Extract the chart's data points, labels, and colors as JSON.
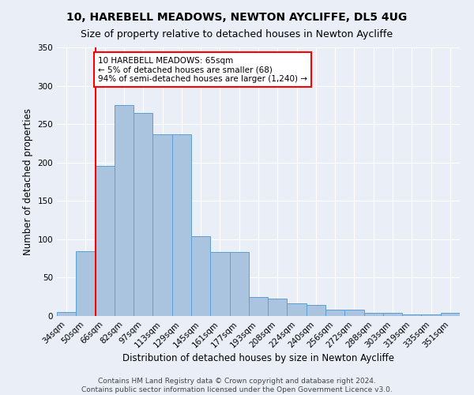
{
  "title": "10, HAREBELL MEADOWS, NEWTON AYCLIFFE, DL5 4UG",
  "subtitle": "Size of property relative to detached houses in Newton Aycliffe",
  "xlabel": "Distribution of detached houses by size in Newton Aycliffe",
  "ylabel": "Number of detached properties",
  "categories": [
    "34sqm",
    "50sqm",
    "66sqm",
    "82sqm",
    "97sqm",
    "113sqm",
    "129sqm",
    "145sqm",
    "161sqm",
    "177sqm",
    "193sqm",
    "208sqm",
    "224sqm",
    "240sqm",
    "256sqm",
    "272sqm",
    "288sqm",
    "303sqm",
    "319sqm",
    "335sqm",
    "351sqm"
  ],
  "bar_values": [
    5,
    84,
    196,
    275,
    265,
    237,
    237,
    104,
    83,
    83,
    25,
    23,
    16,
    14,
    8,
    8,
    4,
    4,
    2,
    2,
    4
  ],
  "bar_color": "#aac4e0",
  "bar_edge_color": "#5a9fd4",
  "annotation_text": "10 HAREBELL MEADOWS: 65sqm\n← 5% of detached houses are smaller (68)\n94% of semi-detached houses are larger (1,240) →",
  "annotation_box_color": "white",
  "annotation_box_edge_color": "red",
  "vline_color": "red",
  "ylim": [
    0,
    350
  ],
  "yticks": [
    0,
    50,
    100,
    150,
    200,
    250,
    300,
    350
  ],
  "footer1": "Contains HM Land Registry data © Crown copyright and database right 2024.",
  "footer2": "Contains public sector information licensed under the Open Government Licence v3.0.",
  "background_color": "#eaeff7",
  "plot_background": "#eaeff7",
  "title_fontsize": 10,
  "subtitle_fontsize": 9,
  "xlabel_fontsize": 8.5,
  "ylabel_fontsize": 8.5,
  "tick_fontsize": 7.5,
  "annotation_fontsize": 7.5,
  "footer_fontsize": 6.5
}
